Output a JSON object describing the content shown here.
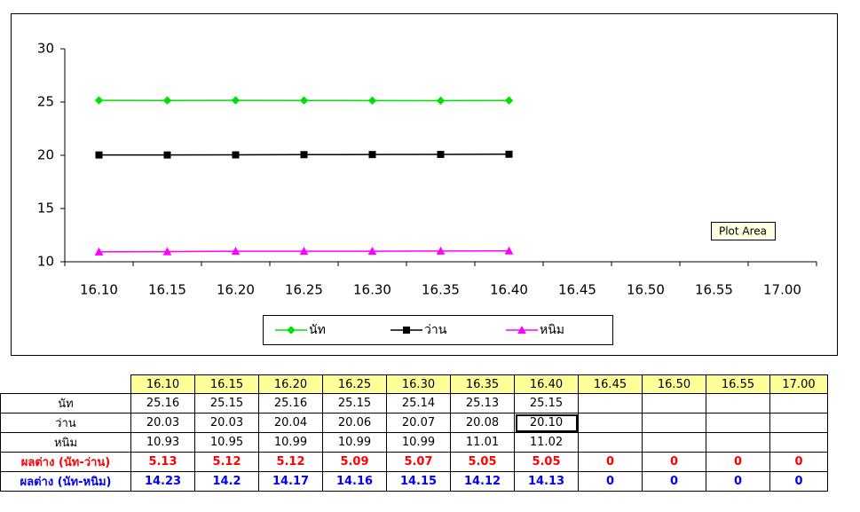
{
  "chart_data": {
    "type": "line",
    "categories": [
      "16.10",
      "16.15",
      "16.20",
      "16.25",
      "16.30",
      "16.35",
      "16.40",
      "16.45",
      "16.50",
      "16.55",
      "17.00"
    ],
    "series": [
      {
        "name": "นัท",
        "color": "#00e000",
        "marker": "diamond",
        "values": [
          25.16,
          25.15,
          25.16,
          25.15,
          25.14,
          25.13,
          25.15,
          null,
          null,
          null,
          null
        ]
      },
      {
        "name": "ว่าน",
        "color": "#000000",
        "marker": "square",
        "values": [
          20.03,
          20.03,
          20.04,
          20.06,
          20.07,
          20.08,
          20.1,
          null,
          null,
          null,
          null
        ]
      },
      {
        "name": "หนิม",
        "color": "#ff00ff",
        "marker": "triangle",
        "values": [
          10.93,
          10.95,
          10.99,
          10.99,
          10.99,
          11.01,
          11.02,
          null,
          null,
          null,
          null
        ]
      }
    ],
    "ylim": [
      10,
      30
    ],
    "yticks": [
      10,
      15,
      20,
      25,
      30
    ],
    "grid": false,
    "legend": "bottom",
    "tooltip": "Plot Area"
  },
  "table": {
    "rows": [
      {
        "cells": [
          "25.16",
          "25.15",
          "25.16",
          "25.15",
          "25.14",
          "25.13",
          "25.15",
          null,
          null,
          null,
          null
        ]
      },
      {
        "cells": [
          "20.03",
          "20.03",
          "20.04",
          "20.06",
          "20.07",
          "20.08",
          "20.10",
          null,
          null,
          null,
          null
        ]
      },
      {
        "cells": [
          "10.93",
          "10.95",
          "10.99",
          "10.99",
          "10.99",
          "11.01",
          "11.02",
          null,
          null,
          null,
          null
        ]
      },
      {
        "label": "ผลต่าง (นัท-ว่าน)",
        "color": "#ff0000",
        "cells": [
          "5.13",
          "5.12",
          "5.12",
          "5.09",
          "5.07",
          "5.05",
          "5.05",
          "0",
          "0",
          "0",
          "0"
        ]
      },
      {
        "label": "ผลต่าง (นัท-หนิม)",
        "color": "#0000ff",
        "cells": [
          "14.23",
          "14.2",
          "14.17",
          "14.16",
          "14.15",
          "14.12",
          "14.13",
          "0",
          "0",
          "0",
          "0"
        ]
      }
    ]
  }
}
